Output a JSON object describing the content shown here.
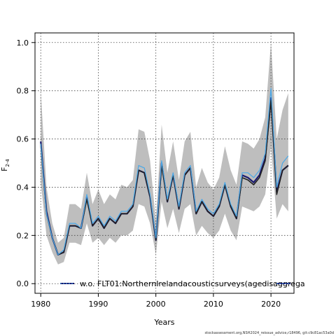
{
  "chart_data": {
    "type": "line",
    "title": "",
    "xlabel": "Years",
    "ylabel": "F",
    "ylabel_sub": "2-4",
    "xlim": [
      1979,
      2024
    ],
    "ylim": [
      -0.04,
      1.04
    ],
    "grid": true,
    "x_ticks": [
      1980,
      1990,
      2000,
      2010,
      2020
    ],
    "y_ticks": [
      0.0,
      0.2,
      0.4,
      0.6,
      0.8,
      1.0
    ],
    "x_tick_labels": [
      "1980",
      "1990",
      "2000",
      "2010",
      "2020"
    ],
    "y_tick_labels": [
      "0.0",
      "0.2",
      "0.4",
      "0.6",
      "0.8",
      "1.0"
    ],
    "x": [
      1980,
      1981,
      1982,
      1983,
      1984,
      1985,
      1986,
      1987,
      1988,
      1989,
      1990,
      1991,
      1992,
      1993,
      1994,
      1995,
      1996,
      1997,
      1998,
      1999,
      2000,
      2001,
      2002,
      2003,
      2004,
      2005,
      2006,
      2007,
      2008,
      2009,
      2010,
      2011,
      2012,
      2013,
      2014,
      2015,
      2016,
      2017,
      2018,
      2019,
      2020,
      2021,
      2022,
      2023
    ],
    "series": [
      {
        "key": "base",
        "color": "#1a1a6e",
        "values": [
          0.59,
          0.3,
          0.19,
          0.12,
          0.13,
          0.24,
          0.24,
          0.23,
          0.36,
          0.24,
          0.27,
          0.23,
          0.27,
          0.25,
          0.29,
          0.29,
          0.32,
          0.47,
          0.46,
          0.36,
          0.18,
          0.5,
          0.34,
          0.45,
          0.31,
          0.45,
          0.48,
          0.29,
          0.34,
          0.3,
          0.28,
          0.32,
          0.41,
          0.32,
          0.27,
          0.45,
          0.44,
          0.42,
          0.45,
          0.52,
          0.77,
          0.38,
          0.47,
          0.49
        ]
      },
      {
        "key": "retro",
        "color": "#222222",
        "values": [
          0.58,
          0.29,
          0.19,
          0.12,
          0.13,
          0.24,
          0.24,
          0.23,
          0.35,
          0.24,
          0.27,
          0.23,
          0.27,
          0.25,
          0.29,
          0.29,
          0.32,
          0.47,
          0.46,
          0.36,
          0.18,
          0.49,
          0.34,
          0.45,
          0.31,
          0.45,
          0.48,
          0.29,
          0.34,
          0.3,
          0.28,
          0.32,
          0.41,
          0.32,
          0.27,
          0.44,
          0.43,
          0.41,
          0.44,
          0.51,
          0.76,
          0.37,
          0.47,
          0.49
        ]
      },
      {
        "key": "wo_flt01",
        "name": "w.o. FLT01:NorthernIrelandacousticsurveys(agedisaggrega",
        "color": "#4aa8e8",
        "values": [
          0.58,
          0.29,
          0.19,
          0.12,
          0.14,
          0.25,
          0.25,
          0.23,
          0.37,
          0.25,
          0.28,
          0.24,
          0.28,
          0.26,
          0.3,
          0.3,
          0.33,
          0.49,
          0.48,
          0.37,
          0.19,
          0.51,
          0.35,
          0.46,
          0.32,
          0.46,
          0.49,
          0.3,
          0.35,
          0.31,
          0.29,
          0.33,
          0.42,
          0.33,
          0.28,
          0.46,
          0.46,
          0.44,
          0.47,
          0.54,
          0.81,
          0.4,
          0.5,
          0.53
        ]
      }
    ],
    "band": {
      "color": "#bebebe",
      "upper": [
        0.8,
        0.4,
        0.25,
        0.17,
        0.19,
        0.33,
        0.33,
        0.31,
        0.46,
        0.33,
        0.39,
        0.33,
        0.37,
        0.35,
        0.41,
        0.4,
        0.43,
        0.64,
        0.63,
        0.51,
        0.26,
        0.66,
        0.46,
        0.59,
        0.43,
        0.59,
        0.63,
        0.4,
        0.48,
        0.42,
        0.39,
        0.44,
        0.57,
        0.47,
        0.41,
        0.59,
        0.58,
        0.56,
        0.6,
        0.69,
        1.0,
        0.6,
        0.72,
        0.79
      ],
      "lower": [
        0.42,
        0.2,
        0.13,
        0.08,
        0.09,
        0.17,
        0.17,
        0.16,
        0.25,
        0.17,
        0.19,
        0.16,
        0.19,
        0.17,
        0.2,
        0.2,
        0.22,
        0.33,
        0.32,
        0.25,
        0.12,
        0.34,
        0.23,
        0.31,
        0.21,
        0.31,
        0.33,
        0.2,
        0.24,
        0.21,
        0.19,
        0.22,
        0.29,
        0.22,
        0.18,
        0.32,
        0.31,
        0.3,
        0.32,
        0.37,
        0.57,
        0.27,
        0.33,
        0.3
      ]
    },
    "legend_position": "bottom",
    "footer": "stockassessment.org,NSH2024_reissue_advice,r18496, git:c9c81ac53a0d"
  }
}
